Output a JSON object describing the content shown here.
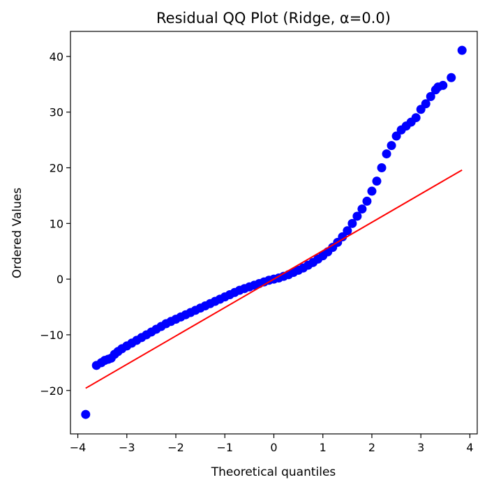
{
  "chart_data": {
    "type": "scatter",
    "title": "Residual QQ Plot (Ridge, α=0.0)",
    "xlabel": "Theoretical quantiles",
    "ylabel": "Ordered Values",
    "xlim": [
      -4.15,
      4.15
    ],
    "ylim": [
      -27.8,
      44.5
    ],
    "xticks": [
      -4,
      -3,
      -2,
      -1,
      0,
      1,
      2,
      3,
      4
    ],
    "xtick_labels": [
      "−4",
      "−3",
      "−2",
      "−1",
      "0",
      "1",
      "2",
      "3",
      "4"
    ],
    "yticks": [
      -20,
      -10,
      0,
      10,
      20,
      30,
      40
    ],
    "ytick_labels": [
      "−20",
      "−10",
      "0",
      "10",
      "20",
      "30",
      "40"
    ],
    "grid": false,
    "point_color": "#0000ff",
    "line_color": "#ff0000",
    "series": [
      {
        "kind": "points",
        "x": [
          -3.84,
          -3.62,
          -3.52,
          -3.45,
          -3.38,
          -3.32,
          -3.25,
          -3.18,
          -3.1,
          -3.0,
          -2.9,
          -2.8,
          -2.7,
          -2.6,
          -2.5,
          -2.4,
          -2.3,
          -2.2,
          -2.1,
          -2.0,
          -1.9,
          -1.8,
          -1.7,
          -1.6,
          -1.5,
          -1.4,
          -1.3,
          -1.2,
          -1.1,
          -1.0,
          -0.9,
          -0.8,
          -0.7,
          -0.6,
          -0.5,
          -0.4,
          -0.3,
          -0.2,
          -0.1,
          0.0,
          0.1,
          0.2,
          0.3,
          0.4,
          0.5,
          0.6,
          0.7,
          0.8,
          0.9,
          1.0,
          1.1,
          1.2,
          1.3,
          1.4,
          1.5,
          1.6,
          1.7,
          1.8,
          1.9,
          2.0,
          2.1,
          2.2,
          2.3,
          2.4,
          2.5,
          2.6,
          2.7,
          2.8,
          2.9,
          3.0,
          3.1,
          3.2,
          3.3,
          3.35,
          3.45,
          3.62,
          3.84
        ],
        "y": [
          -24.3,
          -15.5,
          -15.0,
          -14.6,
          -14.4,
          -14.2,
          -13.5,
          -13.0,
          -12.5,
          -12.0,
          -11.5,
          -11.0,
          -10.5,
          -10.0,
          -9.5,
          -9.0,
          -8.5,
          -8.0,
          -7.6,
          -7.2,
          -6.8,
          -6.4,
          -6.0,
          -5.6,
          -5.2,
          -4.8,
          -4.4,
          -4.0,
          -3.6,
          -3.2,
          -2.8,
          -2.4,
          -2.0,
          -1.7,
          -1.4,
          -1.1,
          -0.8,
          -0.5,
          -0.2,
          0.0,
          0.2,
          0.5,
          0.8,
          1.2,
          1.6,
          2.0,
          2.5,
          3.0,
          3.6,
          4.2,
          4.9,
          5.7,
          6.6,
          7.6,
          8.7,
          10.0,
          11.3,
          12.6,
          14.0,
          15.8,
          17.6,
          20.0,
          22.5,
          24.0,
          25.7,
          26.8,
          27.5,
          28.2,
          29.0,
          30.5,
          31.5,
          32.8,
          34.0,
          34.5,
          34.8,
          36.2,
          41.1
        ]
      },
      {
        "kind": "fit-line",
        "x": [
          -3.84,
          3.84
        ],
        "y": [
          -19.6,
          19.6
        ]
      }
    ]
  }
}
